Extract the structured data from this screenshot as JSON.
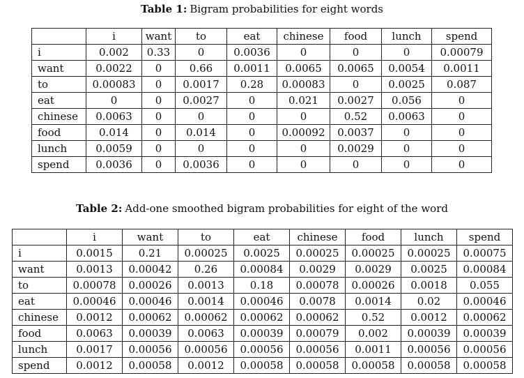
{
  "table1": {
    "caption_label": "Table 1:",
    "caption_text": "Bigram probabilities for eight words",
    "columns": [
      "i",
      "want",
      "to",
      "eat",
      "chinese",
      "food",
      "lunch",
      "spend"
    ],
    "rows": [
      {
        "label": "i",
        "cells": [
          "0.002",
          "0.33",
          "0",
          "0.0036",
          "0",
          "0",
          "0",
          "0.00079"
        ]
      },
      {
        "label": "want",
        "cells": [
          "0.0022",
          "0",
          "0.66",
          "0.0011",
          "0.0065",
          "0.0065",
          "0.0054",
          "0.0011"
        ]
      },
      {
        "label": "to",
        "cells": [
          "0.00083",
          "0",
          "0.0017",
          "0.28",
          "0.00083",
          "0",
          "0.0025",
          "0.087"
        ]
      },
      {
        "label": "eat",
        "cells": [
          "0",
          "0",
          "0.0027",
          "0",
          "0.021",
          "0.0027",
          "0.056",
          "0"
        ]
      },
      {
        "label": "chinese",
        "cells": [
          "0.0063",
          "0",
          "0",
          "0",
          "0",
          "0.52",
          "0.0063",
          "0"
        ]
      },
      {
        "label": "food",
        "cells": [
          "0.014",
          "0",
          "0.014",
          "0",
          "0.00092",
          "0.0037",
          "0",
          "0"
        ]
      },
      {
        "label": "lunch",
        "cells": [
          "0.0059",
          "0",
          "0",
          "0",
          "0",
          "0.0029",
          "0",
          "0"
        ]
      },
      {
        "label": "spend",
        "cells": [
          "0.0036",
          "0",
          "0.0036",
          "0",
          "0",
          "0",
          "0",
          "0"
        ]
      }
    ]
  },
  "table2": {
    "caption_label": "Table 2:",
    "caption_text": "Add-one smoothed bigram probabilities for eight of the word",
    "columns": [
      "i",
      "want",
      "to",
      "eat",
      "chinese",
      "food",
      "lunch",
      "spend"
    ],
    "rows": [
      {
        "label": "i",
        "cells": [
          "0.0015",
          "0.21",
          "0.00025",
          "0.0025",
          "0.00025",
          "0.00025",
          "0.00025",
          "0.00075"
        ]
      },
      {
        "label": "want",
        "cells": [
          "0.0013",
          "0.00042",
          "0.26",
          "0.00084",
          "0.0029",
          "0.0029",
          "0.0025",
          "0.00084"
        ]
      },
      {
        "label": "to",
        "cells": [
          "0.00078",
          "0.00026",
          "0.0013",
          "0.18",
          "0.00078",
          "0.00026",
          "0.0018",
          "0.055"
        ]
      },
      {
        "label": "eat",
        "cells": [
          "0.00046",
          "0.00046",
          "0.0014",
          "0.00046",
          "0.0078",
          "0.0014",
          "0.02",
          "0.00046"
        ]
      },
      {
        "label": "chinese",
        "cells": [
          "0.0012",
          "0.00062",
          "0.00062",
          "0.00062",
          "0.00062",
          "0.52",
          "0.0012",
          "0.00062"
        ]
      },
      {
        "label": "food",
        "cells": [
          "0.0063",
          "0.00039",
          "0.0063",
          "0.00039",
          "0.00079",
          "0.002",
          "0.00039",
          "0.00039"
        ]
      },
      {
        "label": "lunch",
        "cells": [
          "0.0017",
          "0.00056",
          "0.00056",
          "0.00056",
          "0.00056",
          "0.0011",
          "0.00056",
          "0.00056"
        ]
      },
      {
        "label": "spend",
        "cells": [
          "0.0012",
          "0.00058",
          "0.0012",
          "0.00058",
          "0.00058",
          "0.00058",
          "0.00058",
          "0.00058"
        ]
      }
    ]
  }
}
